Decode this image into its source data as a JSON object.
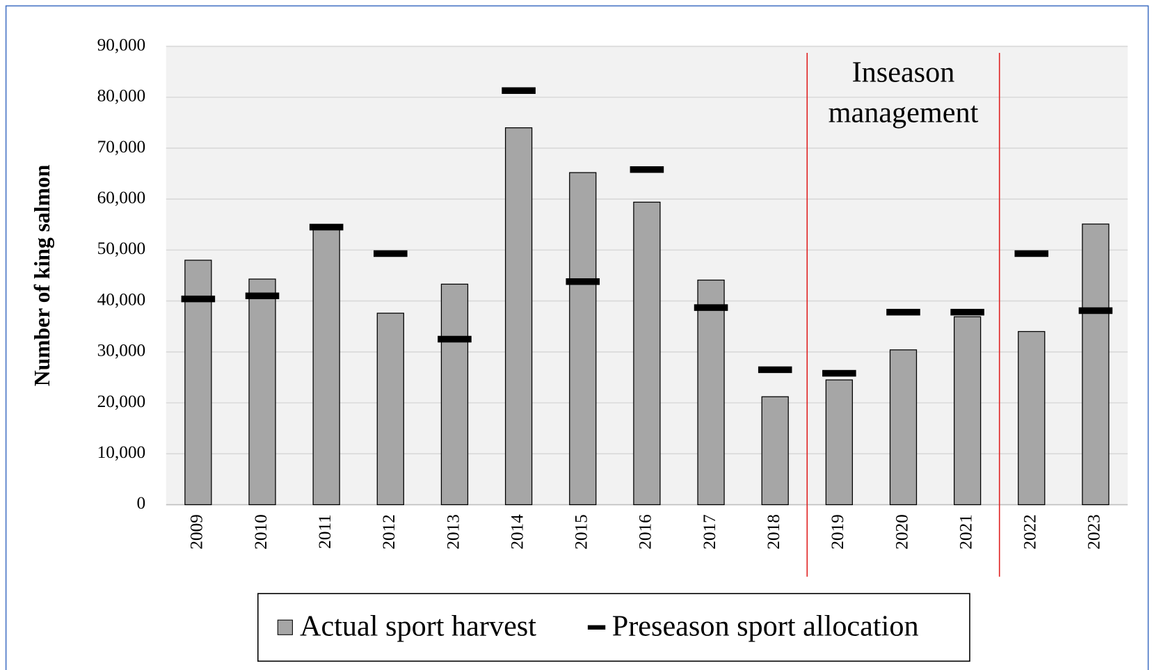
{
  "chart_data": {
    "type": "bar",
    "ylabel": "Number of king salmon",
    "annotation": [
      "Inseason",
      "management"
    ],
    "categories": [
      "2009",
      "2010",
      "2011",
      "2012",
      "2013",
      "2014",
      "2015",
      "2016",
      "2017",
      "2018",
      "2019",
      "2020",
      "2021",
      "2022",
      "2023"
    ],
    "series": [
      {
        "name": "Actual sport harvest",
        "color": "#a6a6a6",
        "mark": "bar",
        "values": [
          48000,
          44300,
          54500,
          37600,
          43300,
          74000,
          65200,
          59400,
          44100,
          21200,
          24500,
          30400,
          36900,
          34000,
          55100
        ]
      },
      {
        "name": "Preseason sport allocation",
        "color": "#000000",
        "mark": "dash",
        "values": [
          40400,
          41000,
          54500,
          49300,
          32500,
          81300,
          43800,
          65800,
          38700,
          26500,
          25800,
          37800,
          37800,
          49300,
          38100
        ]
      }
    ],
    "ylim": [
      0,
      90000
    ],
    "yticks": [
      0,
      {
        "value": 10000,
        "label": "10,000"
      },
      {
        "value": 20000,
        "label": "20,000"
      },
      {
        "value": 30000,
        "label": "30,000"
      },
      {
        "value": 40000,
        "label": "40,000"
      },
      {
        "value": 50000,
        "label": "50,000"
      },
      {
        "value": 60000,
        "label": "60,000"
      },
      {
        "value": 70000,
        "label": "70,000"
      },
      {
        "value": 80000,
        "label": "80,000"
      },
      {
        "value": 90000,
        "label": "90,000"
      }
    ],
    "grid": true
  }
}
